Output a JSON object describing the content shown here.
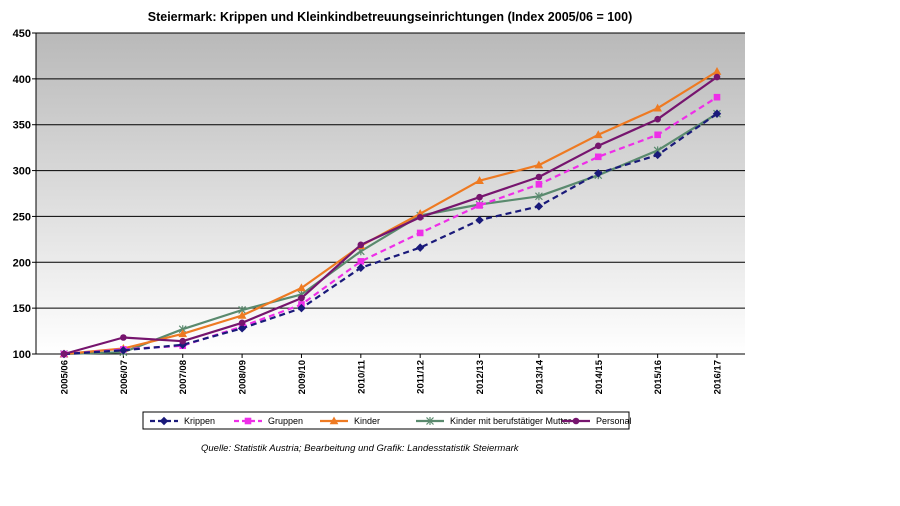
{
  "chart_data": {
    "type": "line",
    "title": "Steiermark: Krippen und Kleinkindbetreuungseinrichtungen (Index 2005/06 = 100)",
    "xlabel": "",
    "ylabel": "",
    "ylim": [
      100,
      450
    ],
    "yticks": [
      100,
      150,
      200,
      250,
      300,
      350,
      400,
      450
    ],
    "grid": true,
    "legend_position": "bottom",
    "categories": [
      "2005/06",
      "2006/07",
      "2007/08",
      "2008/09",
      "2009/10",
      "2010/11",
      "2011/12",
      "2012/13",
      "2013/14",
      "2014/15",
      "2015/16",
      "2016/17"
    ],
    "series": [
      {
        "name": "Krippen",
        "color": "#1a1a7a",
        "dash": "dashed",
        "marker": "diamond",
        "values": [
          100,
          104,
          110,
          128,
          150,
          194,
          216,
          246,
          261,
          297,
          317,
          362
        ]
      },
      {
        "name": "Gruppen",
        "color": "#ee2ee8",
        "dash": "dashed",
        "marker": "square",
        "values": [
          100,
          105,
          109,
          130,
          154,
          201,
          232,
          262,
          285,
          315,
          339,
          380
        ]
      },
      {
        "name": "Kinder",
        "color": "#ee7a22",
        "dash": "solid",
        "marker": "triangle",
        "values": [
          100,
          106,
          122,
          142,
          172,
          218,
          253,
          289,
          306,
          339,
          368,
          408
        ]
      },
      {
        "name": "Kinder mit berufstätiger Mutter",
        "color": "#5a8a6e",
        "dash": "solid",
        "marker": "star",
        "values": [
          100,
          102,
          127,
          148,
          165,
          212,
          251,
          263,
          272,
          295,
          322,
          362
        ]
      },
      {
        "name": "Personal",
        "color": "#76156e",
        "dash": "solid",
        "marker": "circle",
        "values": [
          100,
          118,
          114,
          134,
          161,
          219,
          249,
          271,
          293,
          327,
          356,
          402
        ]
      }
    ]
  },
  "source_text": "Quelle: Statistik Austria; Bearbeitung und Grafik: Landesstatistik Steiermark"
}
